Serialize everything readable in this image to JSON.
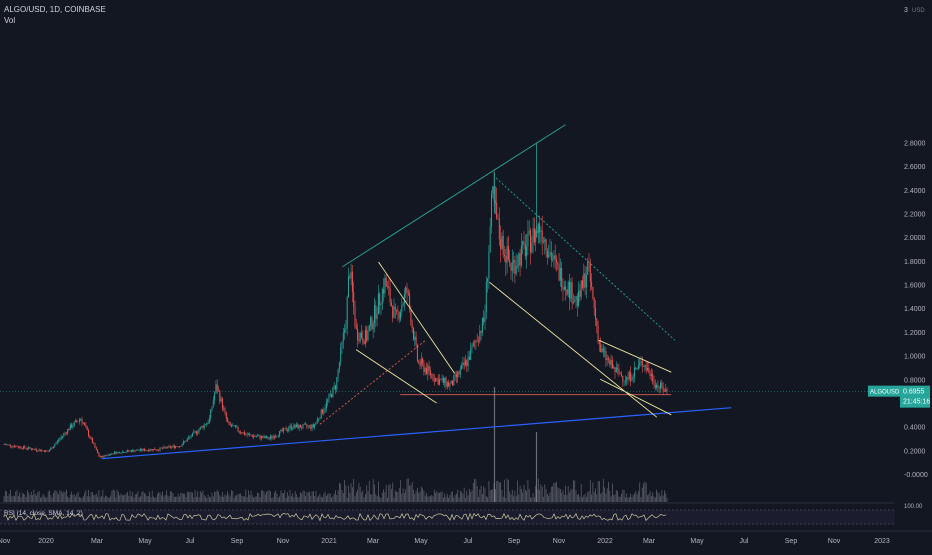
{
  "header": {
    "symbol_line": "ALGO/USD, 1D, COINBASE",
    "volume_label": "Vol"
  },
  "price_axis": {
    "currency": "USD",
    "top_tick": "3",
    "ticks": [
      "2.8000",
      "2.6000",
      "2.4000",
      "2.2000",
      "2.0000",
      "1.8000",
      "1.6000",
      "1.4000",
      "1.2000",
      "1.0000",
      "0.8000",
      "0.6000",
      "0.4000",
      "0.2000",
      "-0.0000"
    ],
    "rsi_tick": "100.00"
  },
  "last_price": {
    "ticker": "ALGOUSD",
    "price": "0.6955",
    "countdown": "21:45:16",
    "value": 0.6955
  },
  "rsi": {
    "label": "RSI (14, close, SMA, 14, 2)"
  },
  "time_axis": {
    "labels": [
      "Nov",
      "2020",
      "Mar",
      "May",
      "Jul",
      "Sep",
      "Nov",
      "2021",
      "Mar",
      "May",
      "Jul",
      "Sep",
      "Nov",
      "2022",
      "Mar",
      "May",
      "Jul",
      "Sep",
      "Nov",
      "2023"
    ]
  },
  "colors": {
    "background": "#131722",
    "up": "#26a69a",
    "down": "#ef5350",
    "teal_trendline": "#26a69a",
    "blue_trendline": "#2962ff",
    "yellow_trendline": "#f0e6a0",
    "red_support": "#e05a4f",
    "rsi_line": "#e8e3b0"
  },
  "chart_data": {
    "type": "candlestick",
    "y_scale": "linear",
    "ylim": [
      -0.05,
      3.0
    ],
    "x_range": [
      "2019-11",
      "2023-01"
    ],
    "grid": false,
    "series": [
      {
        "name": "ALGO/USD",
        "close_path": [
          [
            "2019-11-01",
            0.25
          ],
          [
            "2019-12-01",
            0.22
          ],
          [
            "2020-01-01",
            0.19
          ],
          [
            "2020-02-01",
            0.4
          ],
          [
            "2020-02-15",
            0.47
          ],
          [
            "2020-03-12",
            0.14
          ],
          [
            "2020-04-01",
            0.18
          ],
          [
            "2020-05-01",
            0.2
          ],
          [
            "2020-06-01",
            0.21
          ],
          [
            "2020-07-01",
            0.24
          ],
          [
            "2020-08-10",
            0.45
          ],
          [
            "2020-08-20",
            0.75
          ],
          [
            "2020-09-05",
            0.42
          ],
          [
            "2020-10-01",
            0.33
          ],
          [
            "2020-11-01",
            0.3
          ],
          [
            "2020-12-01",
            0.4
          ],
          [
            "2021-01-01",
            0.4
          ],
          [
            "2021-01-15",
            0.55
          ],
          [
            "2021-02-01",
            0.75
          ],
          [
            "2021-02-15",
            1.3
          ],
          [
            "2021-02-20",
            1.75
          ],
          [
            "2021-03-01",
            1.2
          ],
          [
            "2021-03-15",
            1.15
          ],
          [
            "2021-04-01",
            1.45
          ],
          [
            "2021-04-10",
            1.62
          ],
          [
            "2021-04-25",
            1.3
          ],
          [
            "2021-05-10",
            1.55
          ],
          [
            "2021-05-25",
            0.95
          ],
          [
            "2021-06-20",
            0.8
          ],
          [
            "2021-07-10",
            0.75
          ],
          [
            "2021-08-01",
            0.95
          ],
          [
            "2021-08-25",
            1.3
          ],
          [
            "2021-09-05",
            2.35
          ],
          [
            "2021-09-15",
            2.0
          ],
          [
            "2021-10-01",
            1.75
          ],
          [
            "2021-10-20",
            1.9
          ],
          [
            "2021-11-10",
            2.1
          ],
          [
            "2021-12-01",
            1.75
          ],
          [
            "2022-01-01",
            1.45
          ],
          [
            "2022-01-15",
            1.75
          ],
          [
            "2022-02-01",
            1.05
          ],
          [
            "2022-02-20",
            0.88
          ],
          [
            "2022-03-10",
            0.8
          ],
          [
            "2022-04-01",
            0.95
          ],
          [
            "2022-04-20",
            0.75
          ],
          [
            "2022-05-05",
            0.6955
          ]
        ]
      }
    ],
    "volume_spikes": [
      [
        "2021-09-08",
        "largest"
      ],
      [
        "2021-11-05",
        "large"
      ]
    ],
    "drawings": [
      {
        "kind": "trendline",
        "color": "teal",
        "from": [
          "2021-02-10",
          1.75
        ],
        "to": [
          "2021-12-15",
          2.95
        ]
      },
      {
        "kind": "trendline",
        "color": "blue",
        "from": [
          "2020-03-15",
          0.13
        ],
        "to": [
          "2022-08-01",
          0.56
        ]
      },
      {
        "kind": "dotted-trendline",
        "color": "teal",
        "from": [
          "2021-09-10",
          2.5
        ],
        "to": [
          "2022-05-15",
          1.13
        ]
      },
      {
        "kind": "dotted-trendline",
        "color": "red",
        "from": [
          "2021-01-10",
          0.42
        ],
        "to": [
          "2021-06-05",
          1.13
        ]
      },
      {
        "kind": "horizontal-segment",
        "color": "red",
        "y": 0.67,
        "from": "2021-05-01",
        "to": "2022-05-10"
      },
      {
        "kind": "trendline",
        "color": "yellow",
        "from": [
          "2021-04-01",
          1.79
        ],
        "to": [
          "2021-07-15",
          0.85
        ]
      },
      {
        "kind": "trendline",
        "color": "yellow",
        "from": [
          "2021-03-01",
          1.05
        ],
        "to": [
          "2021-06-20",
          0.6
        ]
      },
      {
        "kind": "trendline",
        "color": "yellow",
        "from": [
          "2021-09-01",
          1.62
        ],
        "to": [
          "2022-04-20",
          0.48
        ]
      },
      {
        "kind": "trendline",
        "color": "yellow",
        "from": [
          "2022-01-30",
          1.13
        ],
        "to": [
          "2022-05-10",
          0.86
        ]
      },
      {
        "kind": "trendline",
        "color": "yellow",
        "from": [
          "2022-02-01",
          0.8
        ],
        "to": [
          "2022-05-10",
          0.5
        ]
      }
    ]
  }
}
